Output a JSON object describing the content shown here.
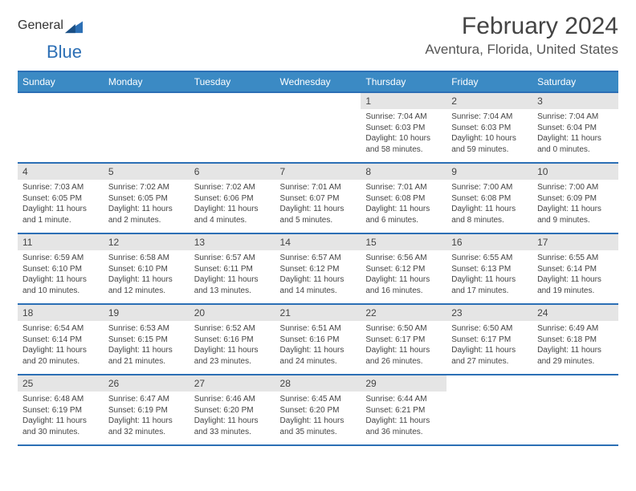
{
  "brand": {
    "word1": "General",
    "word2": "Blue"
  },
  "title": "February 2024",
  "location": "Aventura, Florida, United States",
  "colors": {
    "header_bg": "#3b8ac4",
    "header_text": "#ffffff",
    "border": "#2c6fb5",
    "daynum_bg": "#e5e5e5",
    "body_text": "#444444",
    "page_bg": "#ffffff"
  },
  "weekdays": [
    "Sunday",
    "Monday",
    "Tuesday",
    "Wednesday",
    "Thursday",
    "Friday",
    "Saturday"
  ],
  "weeks": [
    [
      null,
      null,
      null,
      null,
      {
        "n": "1",
        "sunrise": "7:04 AM",
        "sunset": "6:03 PM",
        "daylight": "10 hours and 58 minutes."
      },
      {
        "n": "2",
        "sunrise": "7:04 AM",
        "sunset": "6:03 PM",
        "daylight": "10 hours and 59 minutes."
      },
      {
        "n": "3",
        "sunrise": "7:04 AM",
        "sunset": "6:04 PM",
        "daylight": "11 hours and 0 minutes."
      }
    ],
    [
      {
        "n": "4",
        "sunrise": "7:03 AM",
        "sunset": "6:05 PM",
        "daylight": "11 hours and 1 minute."
      },
      {
        "n": "5",
        "sunrise": "7:02 AM",
        "sunset": "6:05 PM",
        "daylight": "11 hours and 2 minutes."
      },
      {
        "n": "6",
        "sunrise": "7:02 AM",
        "sunset": "6:06 PM",
        "daylight": "11 hours and 4 minutes."
      },
      {
        "n": "7",
        "sunrise": "7:01 AM",
        "sunset": "6:07 PM",
        "daylight": "11 hours and 5 minutes."
      },
      {
        "n": "8",
        "sunrise": "7:01 AM",
        "sunset": "6:08 PM",
        "daylight": "11 hours and 6 minutes."
      },
      {
        "n": "9",
        "sunrise": "7:00 AM",
        "sunset": "6:08 PM",
        "daylight": "11 hours and 8 minutes."
      },
      {
        "n": "10",
        "sunrise": "7:00 AM",
        "sunset": "6:09 PM",
        "daylight": "11 hours and 9 minutes."
      }
    ],
    [
      {
        "n": "11",
        "sunrise": "6:59 AM",
        "sunset": "6:10 PM",
        "daylight": "11 hours and 10 minutes."
      },
      {
        "n": "12",
        "sunrise": "6:58 AM",
        "sunset": "6:10 PM",
        "daylight": "11 hours and 12 minutes."
      },
      {
        "n": "13",
        "sunrise": "6:57 AM",
        "sunset": "6:11 PM",
        "daylight": "11 hours and 13 minutes."
      },
      {
        "n": "14",
        "sunrise": "6:57 AM",
        "sunset": "6:12 PM",
        "daylight": "11 hours and 14 minutes."
      },
      {
        "n": "15",
        "sunrise": "6:56 AM",
        "sunset": "6:12 PM",
        "daylight": "11 hours and 16 minutes."
      },
      {
        "n": "16",
        "sunrise": "6:55 AM",
        "sunset": "6:13 PM",
        "daylight": "11 hours and 17 minutes."
      },
      {
        "n": "17",
        "sunrise": "6:55 AM",
        "sunset": "6:14 PM",
        "daylight": "11 hours and 19 minutes."
      }
    ],
    [
      {
        "n": "18",
        "sunrise": "6:54 AM",
        "sunset": "6:14 PM",
        "daylight": "11 hours and 20 minutes."
      },
      {
        "n": "19",
        "sunrise": "6:53 AM",
        "sunset": "6:15 PM",
        "daylight": "11 hours and 21 minutes."
      },
      {
        "n": "20",
        "sunrise": "6:52 AM",
        "sunset": "6:16 PM",
        "daylight": "11 hours and 23 minutes."
      },
      {
        "n": "21",
        "sunrise": "6:51 AM",
        "sunset": "6:16 PM",
        "daylight": "11 hours and 24 minutes."
      },
      {
        "n": "22",
        "sunrise": "6:50 AM",
        "sunset": "6:17 PM",
        "daylight": "11 hours and 26 minutes."
      },
      {
        "n": "23",
        "sunrise": "6:50 AM",
        "sunset": "6:17 PM",
        "daylight": "11 hours and 27 minutes."
      },
      {
        "n": "24",
        "sunrise": "6:49 AM",
        "sunset": "6:18 PM",
        "daylight": "11 hours and 29 minutes."
      }
    ],
    [
      {
        "n": "25",
        "sunrise": "6:48 AM",
        "sunset": "6:19 PM",
        "daylight": "11 hours and 30 minutes."
      },
      {
        "n": "26",
        "sunrise": "6:47 AM",
        "sunset": "6:19 PM",
        "daylight": "11 hours and 32 minutes."
      },
      {
        "n": "27",
        "sunrise": "6:46 AM",
        "sunset": "6:20 PM",
        "daylight": "11 hours and 33 minutes."
      },
      {
        "n": "28",
        "sunrise": "6:45 AM",
        "sunset": "6:20 PM",
        "daylight": "11 hours and 35 minutes."
      },
      {
        "n": "29",
        "sunrise": "6:44 AM",
        "sunset": "6:21 PM",
        "daylight": "11 hours and 36 minutes."
      },
      null,
      null
    ]
  ],
  "labels": {
    "sunrise": "Sunrise: ",
    "sunset": "Sunset: ",
    "daylight": "Daylight: "
  }
}
